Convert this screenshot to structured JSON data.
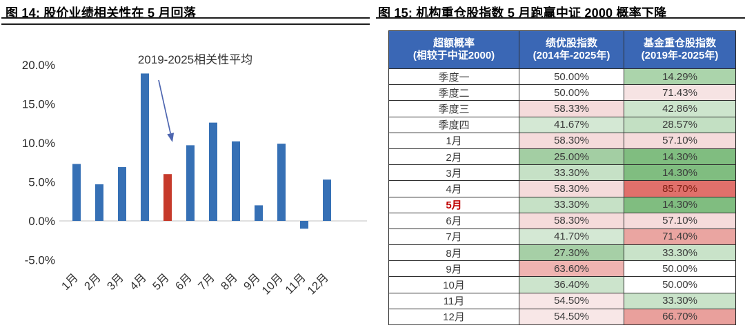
{
  "figure14": {
    "title": "图 14: 股价业绩相关性在 5 月回落"
  },
  "figure15": {
    "title": "图 15: 机构重仓股指数 5 月跑赢中证 2000 概率下降"
  },
  "chart_data": [
    {
      "type": "bar",
      "title": "股价业绩相关性在5月回落",
      "annotation": "2019-2025相关性平均",
      "categories": [
        "1月",
        "2月",
        "3月",
        "4月",
        "5月",
        "6月",
        "7月",
        "8月",
        "9月",
        "10月",
        "11月",
        "12月"
      ],
      "values": [
        7.3,
        4.7,
        6.9,
        18.9,
        6.0,
        9.7,
        12.6,
        10.2,
        2.0,
        9.9,
        -1.0,
        5.3
      ],
      "highlight_index": 4,
      "xlabel": "",
      "ylabel": "",
      "ylim": [
        -5,
        20
      ],
      "grid": false,
      "legend": null,
      "ytick_labels": [
        "20.0%",
        "15.0%",
        "10.0%",
        "5.0%",
        "0.0%",
        "-5.0%"
      ],
      "ytick_values": [
        20,
        15,
        10,
        5,
        0,
        -5
      ],
      "colors": {
        "bar": "#3670B5",
        "highlight": "#C63A2B",
        "arrow": "#4E66B0",
        "axis_line": "#D6D6D6",
        "tick_text": "#2b2b2b",
        "annotation_text": "#333333"
      }
    },
    {
      "type": "table",
      "title": "机构重仓股指数5月跑赢中证2000概率下降",
      "header_bg": "#3A67B5",
      "header_fg": "#FFFFFF",
      "columns": [
        [
          "超额概率",
          "(相较于中证2000)"
        ],
        [
          "绩优股指数",
          "(2014年-2025年)"
        ],
        [
          "基金重仓股指数",
          "(2019年-2025年)"
        ]
      ],
      "rows": [
        {
          "label": "季度一",
          "cells": [
            {
              "v": "50.00%",
              "bg": "#FFFFFF"
            },
            {
              "v": "14.29%",
              "bg": "#ABD4AB"
            }
          ]
        },
        {
          "label": "季度二",
          "cells": [
            {
              "v": "50.00%",
              "bg": "#FFFFFF"
            },
            {
              "v": "71.43%",
              "bg": "#F6E3E3"
            }
          ]
        },
        {
          "label": "季度三",
          "cells": [
            {
              "v": "58.33%",
              "bg": "#F5DBDB"
            },
            {
              "v": "42.86%",
              "bg": "#CDE5CD"
            }
          ]
        },
        {
          "label": "季度四",
          "cells": [
            {
              "v": "41.67%",
              "bg": "#D4E8D4"
            },
            {
              "v": "28.57%",
              "bg": "#C3E0C3"
            }
          ]
        },
        {
          "label": "1月",
          "cells": [
            {
              "v": "58.30%",
              "bg": "#F5DBDB"
            },
            {
              "v": "57.10%",
              "bg": "#F5DBDB"
            }
          ]
        },
        {
          "label": "2月",
          "cells": [
            {
              "v": "25.00%",
              "bg": "#A3CEA3"
            },
            {
              "v": "14.30%",
              "bg": "#80BD80"
            }
          ]
        },
        {
          "label": "3月",
          "cells": [
            {
              "v": "33.30%",
              "bg": "#C6E1C6"
            },
            {
              "v": "14.30%",
              "bg": "#80BD80"
            }
          ]
        },
        {
          "label": "4月",
          "cells": [
            {
              "v": "58.30%",
              "bg": "#F5DBDB"
            },
            {
              "v": "85.70%",
              "bg": "#E0706B",
              "fg": "#7E1D12"
            }
          ]
        },
        {
          "label": "5月",
          "label_color": "#C00000",
          "label_bold": true,
          "cells": [
            {
              "v": "33.30%",
              "bg": "#C6E1C6"
            },
            {
              "v": "14.30%",
              "bg": "#80BD80"
            }
          ]
        },
        {
          "label": "6月",
          "cells": [
            {
              "v": "58.30%",
              "bg": "#F5DBDB"
            },
            {
              "v": "57.10%",
              "bg": "#F5DBDB"
            }
          ]
        },
        {
          "label": "7月",
          "cells": [
            {
              "v": "41.70%",
              "bg": "#D4E8D4"
            },
            {
              "v": "71.40%",
              "bg": "#EAA5A1"
            }
          ]
        },
        {
          "label": "8月",
          "cells": [
            {
              "v": "27.30%",
              "bg": "#A6CFA6"
            },
            {
              "v": "33.30%",
              "bg": "#C9E3C9"
            }
          ]
        },
        {
          "label": "9月",
          "cells": [
            {
              "v": "63.60%",
              "bg": "#EFB4B1"
            },
            {
              "v": "50.00%",
              "bg": "#FFFFFF"
            }
          ]
        },
        {
          "label": "10月",
          "cells": [
            {
              "v": "36.40%",
              "bg": "#CCE4CC"
            },
            {
              "v": "50.00%",
              "bg": "#FFFFFF"
            }
          ]
        },
        {
          "label": "11月",
          "cells": [
            {
              "v": "54.50%",
              "bg": "#F8E7E7"
            },
            {
              "v": "33.30%",
              "bg": "#C9E3C9"
            }
          ]
        },
        {
          "label": "12月",
          "cells": [
            {
              "v": "54.50%",
              "bg": "#F8E7E7"
            },
            {
              "v": "66.70%",
              "bg": "#E9A09C"
            }
          ]
        }
      ]
    }
  ]
}
